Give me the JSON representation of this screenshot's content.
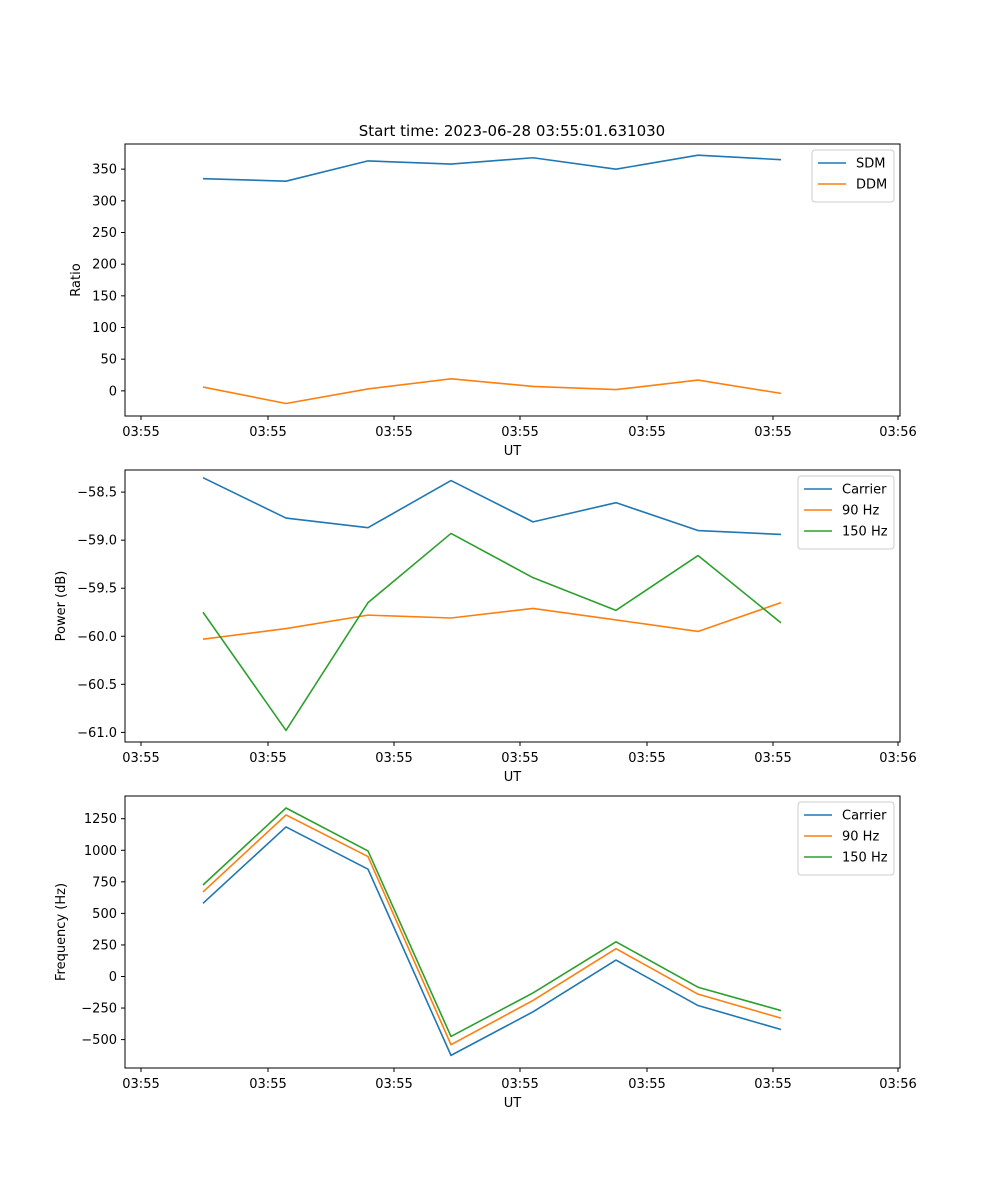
{
  "title": "Start time: 2023-06-28 03:55:01.631030",
  "chart_data": [
    {
      "type": "line",
      "xlabel": "UT",
      "ylabel": "Ratio",
      "x_tick_labels": [
        "03:55",
        "03:55",
        "03:55",
        "03:55",
        "03:55",
        "03:55",
        "03:56"
      ],
      "y_ticks": [
        0,
        50,
        100,
        150,
        200,
        250,
        300,
        350
      ],
      "y_tick_labels": [
        "0",
        "50",
        "100",
        "150",
        "200",
        "250",
        "300",
        "350"
      ],
      "ylim": [
        -39.7,
        389.7
      ],
      "legend_position": "top-right",
      "series": [
        {
          "name": "SDM",
          "color": "#1f77b4",
          "values": [
            335,
            331,
            363,
            358,
            368,
            350,
            372,
            365
          ]
        },
        {
          "name": "DDM",
          "color": "#ff7f0e",
          "values": [
            6,
            -20,
            3,
            19,
            7,
            2,
            17,
            -4
          ]
        }
      ]
    },
    {
      "type": "line",
      "xlabel": "UT",
      "ylabel": "Power (dB)",
      "x_tick_labels": [
        "03:55",
        "03:55",
        "03:55",
        "03:55",
        "03:55",
        "03:55",
        "03:56"
      ],
      "y_ticks": [
        -61.0,
        -60.5,
        -60.0,
        -59.5,
        -59.0,
        -58.5
      ],
      "y_tick_labels": [
        "−61.0",
        "−60.5",
        "−60.0",
        "−59.5",
        "−59.0",
        "−58.5"
      ],
      "ylim": [
        -61.1,
        -58.27
      ],
      "legend_position": "top-right",
      "series": [
        {
          "name": "Carrier",
          "color": "#1f77b4",
          "values": [
            -58.35,
            -58.77,
            -58.87,
            -58.38,
            -58.81,
            -58.61,
            -58.9,
            -58.94
          ]
        },
        {
          "name": "90 Hz",
          "color": "#ff7f0e",
          "values": [
            -60.03,
            -59.92,
            -59.78,
            -59.81,
            -59.71,
            -59.83,
            -59.95,
            -59.65
          ]
        },
        {
          "name": "150 Hz",
          "color": "#2ca02c",
          "values": [
            -59.75,
            -60.98,
            -59.65,
            -58.93,
            -59.39,
            -59.73,
            -59.16,
            -59.86
          ]
        }
      ]
    },
    {
      "type": "line",
      "xlabel": "UT",
      "ylabel": "Frequency (Hz)",
      "x_tick_labels": [
        "03:55",
        "03:55",
        "03:55",
        "03:55",
        "03:55",
        "03:55",
        "03:56"
      ],
      "y_ticks": [
        -500,
        -250,
        0,
        250,
        500,
        750,
        1000,
        1250
      ],
      "y_tick_labels": [
        "−500",
        "−250",
        "0",
        "250",
        "500",
        "750",
        "1000",
        "1250"
      ],
      "ylim": [
        -725,
        1430
      ],
      "legend_position": "top-right",
      "series": [
        {
          "name": "Carrier",
          "color": "#1f77b4",
          "values": [
            580,
            1185,
            850,
            -625,
            -280,
            130,
            -230,
            -420
          ]
        },
        {
          "name": "90 Hz",
          "color": "#ff7f0e",
          "values": [
            670,
            1280,
            950,
            -540,
            -190,
            220,
            -140,
            -330
          ]
        },
        {
          "name": "150 Hz",
          "color": "#2ca02c",
          "values": [
            725,
            1335,
            995,
            -475,
            -130,
            275,
            -85,
            -270
          ]
        }
      ]
    }
  ]
}
